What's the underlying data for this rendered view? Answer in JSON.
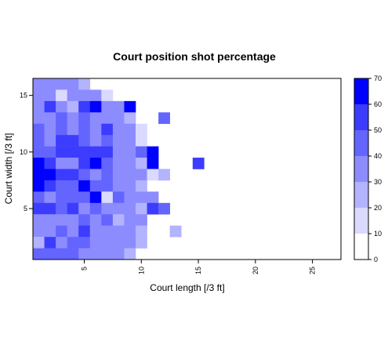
{
  "chart_data": {
    "type": "heatmap",
    "title": "Court position shot percentage",
    "xlabel": "Court length [/3 ft]",
    "ylabel": "Court width [/3 ft]",
    "xlim": [
      0.5,
      27.5
    ],
    "ylim": [
      0.5,
      16.5
    ],
    "x_ticks": [
      5,
      10,
      15,
      20,
      25
    ],
    "y_ticks": [
      5,
      10,
      15
    ],
    "grid": false,
    "color_scale": {
      "min": 0,
      "max": 70,
      "ticks": [
        0,
        10,
        20,
        30,
        40,
        50,
        60,
        70
      ],
      "levels": [
        {
          "from": 0,
          "to": 10,
          "color": "#FFFFFF"
        },
        {
          "from": 10,
          "to": 20,
          "color": "#DADAFF"
        },
        {
          "from": 20,
          "to": 30,
          "color": "#B3B3FF"
        },
        {
          "from": 30,
          "to": 40,
          "color": "#8C8CFF"
        },
        {
          "from": 40,
          "to": 50,
          "color": "#6464FF"
        },
        {
          "from": 50,
          "to": 60,
          "color": "#3C3CFF"
        },
        {
          "from": 60,
          "to": 70,
          "color": "#0000FF"
        }
      ]
    },
    "cells": [
      {
        "x": 1,
        "y": 16,
        "v": 35
      },
      {
        "x": 2,
        "y": 16,
        "v": 35
      },
      {
        "x": 3,
        "y": 16,
        "v": 35
      },
      {
        "x": 4,
        "y": 16,
        "v": 35
      },
      {
        "x": 5,
        "y": 16,
        "v": 25
      },
      {
        "x": 1,
        "y": 15,
        "v": 35
      },
      {
        "x": 2,
        "y": 15,
        "v": 35
      },
      {
        "x": 3,
        "y": 15,
        "v": 15
      },
      {
        "x": 4,
        "y": 15,
        "v": 35
      },
      {
        "x": 5,
        "y": 15,
        "v": 35
      },
      {
        "x": 6,
        "y": 15,
        "v": 35
      },
      {
        "x": 7,
        "y": 15,
        "v": 15
      },
      {
        "x": 1,
        "y": 14,
        "v": 35
      },
      {
        "x": 2,
        "y": 14,
        "v": 55
      },
      {
        "x": 3,
        "y": 14,
        "v": 35
      },
      {
        "x": 4,
        "y": 14,
        "v": 25
      },
      {
        "x": 5,
        "y": 14,
        "v": 55
      },
      {
        "x": 6,
        "y": 14,
        "v": 65
      },
      {
        "x": 7,
        "y": 14,
        "v": 35
      },
      {
        "x": 8,
        "y": 14,
        "v": 35
      },
      {
        "x": 9,
        "y": 14,
        "v": 65
      },
      {
        "x": 1,
        "y": 13,
        "v": 35
      },
      {
        "x": 2,
        "y": 13,
        "v": 35
      },
      {
        "x": 3,
        "y": 13,
        "v": 45
      },
      {
        "x": 4,
        "y": 13,
        "v": 35
      },
      {
        "x": 5,
        "y": 13,
        "v": 45
      },
      {
        "x": 6,
        "y": 13,
        "v": 35
      },
      {
        "x": 7,
        "y": 13,
        "v": 35
      },
      {
        "x": 8,
        "y": 13,
        "v": 35
      },
      {
        "x": 9,
        "y": 13,
        "v": 25
      },
      {
        "x": 12,
        "y": 13,
        "v": 45
      },
      {
        "x": 1,
        "y": 12,
        "v": 45
      },
      {
        "x": 2,
        "y": 12,
        "v": 35
      },
      {
        "x": 3,
        "y": 12,
        "v": 45
      },
      {
        "x": 4,
        "y": 12,
        "v": 35
      },
      {
        "x": 5,
        "y": 12,
        "v": 45
      },
      {
        "x": 6,
        "y": 12,
        "v": 35
      },
      {
        "x": 7,
        "y": 12,
        "v": 55
      },
      {
        "x": 8,
        "y": 12,
        "v": 35
      },
      {
        "x": 9,
        "y": 12,
        "v": 35
      },
      {
        "x": 10,
        "y": 12,
        "v": 15
      },
      {
        "x": 1,
        "y": 11,
        "v": 45
      },
      {
        "x": 2,
        "y": 11,
        "v": 35
      },
      {
        "x": 3,
        "y": 11,
        "v": 55
      },
      {
        "x": 4,
        "y": 11,
        "v": 55
      },
      {
        "x": 5,
        "y": 11,
        "v": 45
      },
      {
        "x": 6,
        "y": 11,
        "v": 35
      },
      {
        "x": 7,
        "y": 11,
        "v": 45
      },
      {
        "x": 8,
        "y": 11,
        "v": 35
      },
      {
        "x": 9,
        "y": 11,
        "v": 35
      },
      {
        "x": 10,
        "y": 11,
        "v": 15
      },
      {
        "x": 1,
        "y": 10,
        "v": 45
      },
      {
        "x": 2,
        "y": 10,
        "v": 45
      },
      {
        "x": 3,
        "y": 10,
        "v": 55
      },
      {
        "x": 4,
        "y": 10,
        "v": 55
      },
      {
        "x": 5,
        "y": 10,
        "v": 55
      },
      {
        "x": 6,
        "y": 10,
        "v": 55
      },
      {
        "x": 7,
        "y": 10,
        "v": 55
      },
      {
        "x": 8,
        "y": 10,
        "v": 35
      },
      {
        "x": 9,
        "y": 10,
        "v": 35
      },
      {
        "x": 10,
        "y": 10,
        "v": 45
      },
      {
        "x": 11,
        "y": 10,
        "v": 65
      },
      {
        "x": 1,
        "y": 9,
        "v": 65
      },
      {
        "x": 2,
        "y": 9,
        "v": 55
      },
      {
        "x": 3,
        "y": 9,
        "v": 35
      },
      {
        "x": 4,
        "y": 9,
        "v": 35
      },
      {
        "x": 5,
        "y": 9,
        "v": 55
      },
      {
        "x": 6,
        "y": 9,
        "v": 65
      },
      {
        "x": 7,
        "y": 9,
        "v": 45
      },
      {
        "x": 8,
        "y": 9,
        "v": 35
      },
      {
        "x": 9,
        "y": 9,
        "v": 35
      },
      {
        "x": 10,
        "y": 9,
        "v": 25
      },
      {
        "x": 11,
        "y": 9,
        "v": 65
      },
      {
        "x": 15,
        "y": 9,
        "v": 55
      },
      {
        "x": 1,
        "y": 8,
        "v": 65
      },
      {
        "x": 2,
        "y": 8,
        "v": 65
      },
      {
        "x": 3,
        "y": 8,
        "v": 55
      },
      {
        "x": 4,
        "y": 8,
        "v": 55
      },
      {
        "x": 5,
        "y": 8,
        "v": 45
      },
      {
        "x": 6,
        "y": 8,
        "v": 35
      },
      {
        "x": 7,
        "y": 8,
        "v": 45
      },
      {
        "x": 8,
        "y": 8,
        "v": 35
      },
      {
        "x": 9,
        "y": 8,
        "v": 35
      },
      {
        "x": 10,
        "y": 8,
        "v": 35
      },
      {
        "x": 11,
        "y": 8,
        "v": 15
      },
      {
        "x": 12,
        "y": 8,
        "v": 25
      },
      {
        "x": 1,
        "y": 7,
        "v": 65
      },
      {
        "x": 2,
        "y": 7,
        "v": 55
      },
      {
        "x": 3,
        "y": 7,
        "v": 45
      },
      {
        "x": 4,
        "y": 7,
        "v": 45
      },
      {
        "x": 5,
        "y": 7,
        "v": 65
      },
      {
        "x": 6,
        "y": 7,
        "v": 45
      },
      {
        "x": 7,
        "y": 7,
        "v": 45
      },
      {
        "x": 8,
        "y": 7,
        "v": 35
      },
      {
        "x": 9,
        "y": 7,
        "v": 35
      },
      {
        "x": 10,
        "y": 7,
        "v": 25
      },
      {
        "x": 1,
        "y": 6,
        "v": 45
      },
      {
        "x": 2,
        "y": 6,
        "v": 35
      },
      {
        "x": 3,
        "y": 6,
        "v": 45
      },
      {
        "x": 4,
        "y": 6,
        "v": 45
      },
      {
        "x": 5,
        "y": 6,
        "v": 45
      },
      {
        "x": 6,
        "y": 6,
        "v": 65
      },
      {
        "x": 7,
        "y": 6,
        "v": 15
      },
      {
        "x": 8,
        "y": 6,
        "v": 45
      },
      {
        "x": 9,
        "y": 6,
        "v": 35
      },
      {
        "x": 10,
        "y": 6,
        "v": 35
      },
      {
        "x": 11,
        "y": 6,
        "v": 35
      },
      {
        "x": 1,
        "y": 5,
        "v": 55
      },
      {
        "x": 2,
        "y": 5,
        "v": 55
      },
      {
        "x": 3,
        "y": 5,
        "v": 45
      },
      {
        "x": 4,
        "y": 5,
        "v": 55
      },
      {
        "x": 5,
        "y": 5,
        "v": 35
      },
      {
        "x": 6,
        "y": 5,
        "v": 45
      },
      {
        "x": 7,
        "y": 5,
        "v": 35
      },
      {
        "x": 8,
        "y": 5,
        "v": 35
      },
      {
        "x": 9,
        "y": 5,
        "v": 35
      },
      {
        "x": 10,
        "y": 5,
        "v": 25
      },
      {
        "x": 11,
        "y": 5,
        "v": 55
      },
      {
        "x": 12,
        "y": 5,
        "v": 45
      },
      {
        "x": 1,
        "y": 4,
        "v": 35
      },
      {
        "x": 2,
        "y": 4,
        "v": 35
      },
      {
        "x": 3,
        "y": 4,
        "v": 35
      },
      {
        "x": 4,
        "y": 4,
        "v": 35
      },
      {
        "x": 5,
        "y": 4,
        "v": 45
      },
      {
        "x": 6,
        "y": 4,
        "v": 35
      },
      {
        "x": 7,
        "y": 4,
        "v": 45
      },
      {
        "x": 8,
        "y": 4,
        "v": 25
      },
      {
        "x": 9,
        "y": 4,
        "v": 35
      },
      {
        "x": 10,
        "y": 4,
        "v": 35
      },
      {
        "x": 1,
        "y": 3,
        "v": 35
      },
      {
        "x": 2,
        "y": 3,
        "v": 35
      },
      {
        "x": 3,
        "y": 3,
        "v": 45
      },
      {
        "x": 4,
        "y": 3,
        "v": 35
      },
      {
        "x": 5,
        "y": 3,
        "v": 55
      },
      {
        "x": 6,
        "y": 3,
        "v": 35
      },
      {
        "x": 7,
        "y": 3,
        "v": 35
      },
      {
        "x": 8,
        "y": 3,
        "v": 35
      },
      {
        "x": 9,
        "y": 3,
        "v": 35
      },
      {
        "x": 10,
        "y": 3,
        "v": 25
      },
      {
        "x": 13,
        "y": 3,
        "v": 25
      },
      {
        "x": 1,
        "y": 2,
        "v": 25
      },
      {
        "x": 2,
        "y": 2,
        "v": 55
      },
      {
        "x": 3,
        "y": 2,
        "v": 35
      },
      {
        "x": 4,
        "y": 2,
        "v": 45
      },
      {
        "x": 5,
        "y": 2,
        "v": 45
      },
      {
        "x": 6,
        "y": 2,
        "v": 35
      },
      {
        "x": 7,
        "y": 2,
        "v": 35
      },
      {
        "x": 8,
        "y": 2,
        "v": 35
      },
      {
        "x": 9,
        "y": 2,
        "v": 35
      },
      {
        "x": 10,
        "y": 2,
        "v": 25
      },
      {
        "x": 1,
        "y": 1,
        "v": 45
      },
      {
        "x": 2,
        "y": 1,
        "v": 45
      },
      {
        "x": 3,
        "y": 1,
        "v": 45
      },
      {
        "x": 4,
        "y": 1,
        "v": 45
      },
      {
        "x": 5,
        "y": 1,
        "v": 35
      },
      {
        "x": 6,
        "y": 1,
        "v": 35
      },
      {
        "x": 7,
        "y": 1,
        "v": 35
      },
      {
        "x": 8,
        "y": 1,
        "v": 35
      },
      {
        "x": 9,
        "y": 1,
        "v": 25
      }
    ]
  }
}
